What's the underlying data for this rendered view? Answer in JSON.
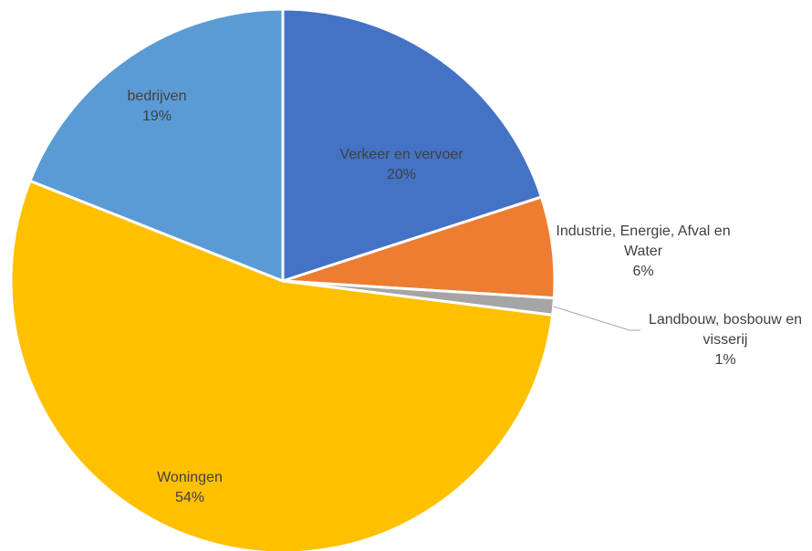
{
  "chart_data": {
    "type": "pie",
    "categories": [
      "Verkeer en vervoer",
      "Industrie, Energie, Afval en Water",
      "Landbouw, bosbouw en visserij",
      "Woningen",
      "bedrijven"
    ],
    "values": [
      20,
      6,
      1,
      54,
      19
    ],
    "value_labels": [
      "20%",
      "6%",
      "1%",
      "54%",
      "19%"
    ],
    "colors": [
      "#4472c4",
      "#ed7d31",
      "#a5a5a5",
      "#ffc000",
      "#5b9bd5"
    ]
  }
}
